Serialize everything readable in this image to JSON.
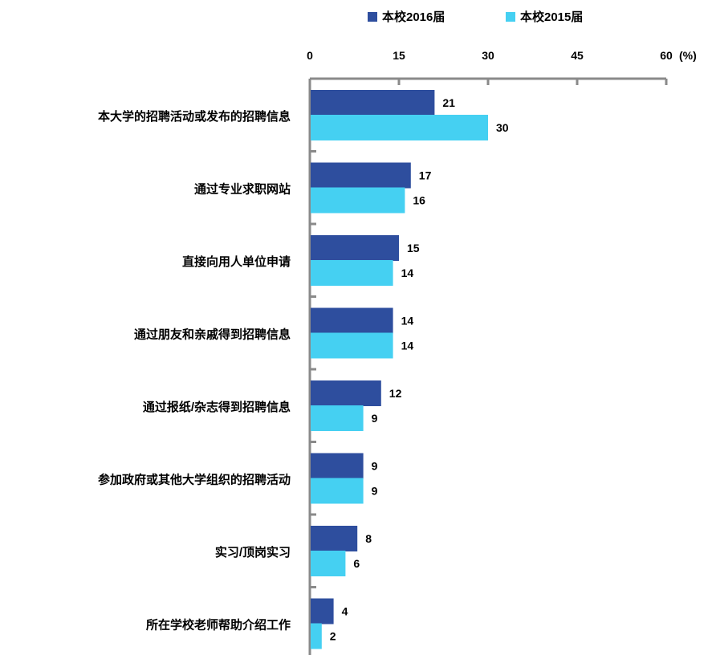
{
  "chart_data": {
    "type": "bar",
    "orientation": "horizontal",
    "unit": "(%)",
    "xlim": [
      0,
      60
    ],
    "ticks": [
      "0",
      "15",
      "30",
      "45",
      "60"
    ],
    "categories": [
      "本大学的招聘活动或发布的招聘信息",
      "通过专业求职网站",
      "直接向用人单位申请",
      "通过朋友和亲戚得到招聘信息",
      "通过报纸/杂志得到招聘信息",
      "参加政府或其他大学组织的招聘活动",
      "实习/顶岗实习",
      "所在学校老师帮助介绍工作"
    ],
    "series": [
      {
        "name": "本校2016届",
        "color": "#2E4E9E",
        "values": [
          21,
          17,
          15,
          14,
          12,
          9,
          8,
          4
        ]
      },
      {
        "name": "本校2015届",
        "color": "#45D0F2",
        "values": [
          30,
          16,
          14,
          14,
          9,
          9,
          6,
          2
        ]
      }
    ],
    "legend": "top",
    "grid": false
  }
}
